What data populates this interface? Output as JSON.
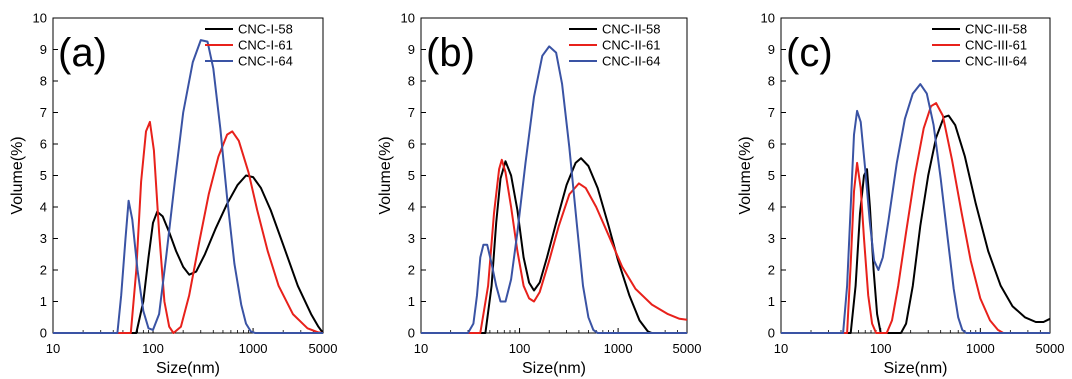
{
  "chart_data": [
    {
      "type": "line",
      "panel_label": "(a)",
      "xlabel": "Size(nm)",
      "ylabel": "Volume(%)",
      "xscale": "log",
      "xlim": [
        10,
        5000
      ],
      "ylim": [
        0,
        10
      ],
      "xticks": [
        10,
        100,
        1000,
        5000
      ],
      "xtick_labels": [
        "10",
        "100",
        "1000",
        "5000"
      ],
      "yticks": [
        0,
        1,
        2,
        3,
        4,
        5,
        6,
        7,
        8,
        9,
        10
      ],
      "ytick_labels": [
        "0",
        "1",
        "2",
        "3",
        "4",
        "5",
        "6",
        "7",
        "8",
        "9",
        "10"
      ],
      "grid": false,
      "legend": "top-right",
      "series": [
        {
          "name": "CNC-I-58",
          "color": "#000000",
          "points": [
            [
              10,
              0
            ],
            [
              68,
              0
            ],
            [
              80,
              1.0
            ],
            [
              90,
              2.4
            ],
            [
              100,
              3.5
            ],
            [
              110,
              3.85
            ],
            [
              125,
              3.7
            ],
            [
              145,
              3.2
            ],
            [
              170,
              2.6
            ],
            [
              200,
              2.1
            ],
            [
              230,
              1.85
            ],
            [
              270,
              1.95
            ],
            [
              330,
              2.5
            ],
            [
              420,
              3.3
            ],
            [
              550,
              4.1
            ],
            [
              700,
              4.7
            ],
            [
              850,
              5.0
            ],
            [
              1000,
              4.95
            ],
            [
              1200,
              4.6
            ],
            [
              1500,
              3.9
            ],
            [
              2000,
              2.8
            ],
            [
              2800,
              1.5
            ],
            [
              3800,
              0.6
            ],
            [
              4500,
              0.2
            ],
            [
              5000,
              0
            ]
          ]
        },
        {
          "name": "CNC-I-61",
          "color": "#e8211b",
          "points": [
            [
              10,
              0
            ],
            [
              60,
              0
            ],
            [
              68,
              2.0
            ],
            [
              76,
              4.8
            ],
            [
              85,
              6.4
            ],
            [
              93,
              6.7
            ],
            [
              102,
              5.8
            ],
            [
              115,
              3.2
            ],
            [
              130,
              1.0
            ],
            [
              145,
              0.2
            ],
            [
              160,
              0
            ],
            [
              190,
              0.2
            ],
            [
              230,
              1.2
            ],
            [
              290,
              2.9
            ],
            [
              360,
              4.4
            ],
            [
              450,
              5.6
            ],
            [
              550,
              6.3
            ],
            [
              620,
              6.4
            ],
            [
              720,
              6.1
            ],
            [
              900,
              5.1
            ],
            [
              1100,
              3.9
            ],
            [
              1400,
              2.6
            ],
            [
              1800,
              1.5
            ],
            [
              2500,
              0.6
            ],
            [
              3500,
              0.15
            ],
            [
              4500,
              0.02
            ],
            [
              5000,
              0
            ]
          ]
        },
        {
          "name": "CNC-I-64",
          "color": "#3a53a4",
          "points": [
            [
              10,
              0
            ],
            [
              44,
              0
            ],
            [
              48,
              1.2
            ],
            [
              53,
              3.0
            ],
            [
              57,
              4.2
            ],
            [
              62,
              3.6
            ],
            [
              70,
              2.0
            ],
            [
              80,
              0.7
            ],
            [
              90,
              0.15
            ],
            [
              100,
              0.1
            ],
            [
              115,
              0.6
            ],
            [
              135,
              2.4
            ],
            [
              165,
              4.8
            ],
            [
              200,
              7.0
            ],
            [
              250,
              8.6
            ],
            [
              300,
              9.3
            ],
            [
              350,
              9.25
            ],
            [
              400,
              8.4
            ],
            [
              470,
              6.5
            ],
            [
              550,
              4.3
            ],
            [
              650,
              2.2
            ],
            [
              760,
              0.9
            ],
            [
              850,
              0.3
            ],
            [
              950,
              0.05
            ],
            [
              1050,
              0
            ],
            [
              5000,
              0
            ]
          ]
        }
      ]
    },
    {
      "type": "line",
      "panel_label": "(b)",
      "xlabel": "Size(nm)",
      "ylabel": "Volume(%)",
      "xscale": "log",
      "xlim": [
        10,
        5000
      ],
      "ylim": [
        0,
        10
      ],
      "xticks": [
        10,
        100,
        1000,
        5000
      ],
      "xtick_labels": [
        "10",
        "100",
        "1000",
        "5000"
      ],
      "yticks": [
        0,
        1,
        2,
        3,
        4,
        5,
        6,
        7,
        8,
        9,
        10
      ],
      "ytick_labels": [
        "0",
        "1",
        "2",
        "3",
        "4",
        "5",
        "6",
        "7",
        "8",
        "9",
        "10"
      ],
      "grid": false,
      "legend": "top-right",
      "series": [
        {
          "name": "CNC-II-58",
          "color": "#000000",
          "points": [
            [
              10,
              0
            ],
            [
              45,
              0
            ],
            [
              52,
              1.5
            ],
            [
              58,
              3.5
            ],
            [
              64,
              4.9
            ],
            [
              72,
              5.45
            ],
            [
              82,
              5.0
            ],
            [
              95,
              3.9
            ],
            [
              110,
              2.4
            ],
            [
              125,
              1.6
            ],
            [
              140,
              1.35
            ],
            [
              160,
              1.6
            ],
            [
              190,
              2.4
            ],
            [
              240,
              3.6
            ],
            [
              300,
              4.7
            ],
            [
              370,
              5.4
            ],
            [
              420,
              5.55
            ],
            [
              500,
              5.3
            ],
            [
              620,
              4.6
            ],
            [
              800,
              3.4
            ],
            [
              1000,
              2.3
            ],
            [
              1300,
              1.2
            ],
            [
              1650,
              0.4
            ],
            [
              2000,
              0.05
            ],
            [
              2200,
              0
            ],
            [
              5000,
              0
            ]
          ]
        },
        {
          "name": "CNC-II-61",
          "color": "#e8211b",
          "points": [
            [
              10,
              0
            ],
            [
              40,
              0
            ],
            [
              48,
              1.5
            ],
            [
              55,
              3.8
            ],
            [
              62,
              5.2
            ],
            [
              66,
              5.5
            ],
            [
              72,
              5.1
            ],
            [
              82,
              4.0
            ],
            [
              95,
              2.6
            ],
            [
              110,
              1.5
            ],
            [
              125,
              1.1
            ],
            [
              140,
              1.0
            ],
            [
              160,
              1.3
            ],
            [
              200,
              2.3
            ],
            [
              250,
              3.4
            ],
            [
              320,
              4.4
            ],
            [
              400,
              4.75
            ],
            [
              470,
              4.6
            ],
            [
              600,
              4.0
            ],
            [
              800,
              3.1
            ],
            [
              1100,
              2.1
            ],
            [
              1500,
              1.4
            ],
            [
              2200,
              0.9
            ],
            [
              3200,
              0.6
            ],
            [
              4200,
              0.45
            ],
            [
              5000,
              0.42
            ]
          ]
        },
        {
          "name": "CNC-II-64",
          "color": "#3a53a4",
          "points": [
            [
              10,
              0
            ],
            [
              30,
              0
            ],
            [
              34,
              0.3
            ],
            [
              37,
              1.2
            ],
            [
              40,
              2.4
            ],
            [
              43,
              2.8
            ],
            [
              47,
              2.8
            ],
            [
              52,
              2.2
            ],
            [
              58,
              1.5
            ],
            [
              64,
              1.0
            ],
            [
              72,
              1.0
            ],
            [
              82,
              1.7
            ],
            [
              95,
              3.2
            ],
            [
              115,
              5.4
            ],
            [
              140,
              7.5
            ],
            [
              170,
              8.8
            ],
            [
              200,
              9.1
            ],
            [
              235,
              8.9
            ],
            [
              270,
              7.9
            ],
            [
              320,
              5.9
            ],
            [
              380,
              3.5
            ],
            [
              440,
              1.5
            ],
            [
              500,
              0.5
            ],
            [
              560,
              0.1
            ],
            [
              620,
              0
            ],
            [
              5000,
              0
            ]
          ]
        }
      ]
    },
    {
      "type": "line",
      "panel_label": "(c)",
      "xlabel": "Size(nm)",
      "ylabel": "Volume(%)",
      "xscale": "log",
      "xlim": [
        10,
        5000
      ],
      "ylim": [
        0,
        10
      ],
      "xticks": [
        10,
        100,
        1000,
        5000
      ],
      "xtick_labels": [
        "10",
        "100",
        "1000",
        "5000"
      ],
      "yticks": [
        0,
        1,
        2,
        3,
        4,
        5,
        6,
        7,
        8,
        9,
        10
      ],
      "ytick_labels": [
        "0",
        "1",
        "2",
        "3",
        "4",
        "5",
        "6",
        "7",
        "8",
        "9",
        "10"
      ],
      "grid": false,
      "legend": "top-right",
      "series": [
        {
          "name": "CNC-III-58",
          "color": "#000000",
          "points": [
            [
              10,
              0
            ],
            [
              50,
              0
            ],
            [
              56,
              1.5
            ],
            [
              62,
              3.8
            ],
            [
              68,
              5.0
            ],
            [
              73,
              5.2
            ],
            [
              78,
              4.0
            ],
            [
              85,
              2.0
            ],
            [
              92,
              0.6
            ],
            [
              100,
              0
            ],
            [
              160,
              0
            ],
            [
              180,
              0.3
            ],
            [
              210,
              1.5
            ],
            [
              250,
              3.4
            ],
            [
              300,
              5.0
            ],
            [
              360,
              6.2
            ],
            [
              430,
              6.85
            ],
            [
              480,
              6.9
            ],
            [
              560,
              6.6
            ],
            [
              700,
              5.6
            ],
            [
              900,
              4.1
            ],
            [
              1200,
              2.6
            ],
            [
              1600,
              1.5
            ],
            [
              2100,
              0.85
            ],
            [
              2800,
              0.5
            ],
            [
              3600,
              0.35
            ],
            [
              4300,
              0.35
            ],
            [
              5000,
              0.45
            ]
          ]
        },
        {
          "name": "CNC-III-61",
          "color": "#e8211b",
          "points": [
            [
              10,
              0
            ],
            [
              46,
              0
            ],
            [
              50,
              2.2
            ],
            [
              54,
              4.5
            ],
            [
              58,
              5.4
            ],
            [
              63,
              4.6
            ],
            [
              68,
              3.0
            ],
            [
              75,
              1.2
            ],
            [
              82,
              0.3
            ],
            [
              90,
              0
            ],
            [
              115,
              0
            ],
            [
              130,
              0.4
            ],
            [
              150,
              1.5
            ],
            [
              180,
              3.2
            ],
            [
              220,
              5.0
            ],
            [
              270,
              6.5
            ],
            [
              320,
              7.2
            ],
            [
              360,
              7.3
            ],
            [
              420,
              6.9
            ],
            [
              520,
              5.5
            ],
            [
              650,
              3.8
            ],
            [
              800,
              2.3
            ],
            [
              1000,
              1.1
            ],
            [
              1250,
              0.4
            ],
            [
              1500,
              0.1
            ],
            [
              1700,
              0
            ],
            [
              5000,
              0
            ]
          ]
        },
        {
          "name": "CNC-III-64",
          "color": "#3a53a4",
          "points": [
            [
              10,
              0
            ],
            [
              42,
              0
            ],
            [
              46,
              1.5
            ],
            [
              50,
              4.0
            ],
            [
              54,
              6.3
            ],
            [
              58,
              7.05
            ],
            [
              63,
              6.7
            ],
            [
              70,
              5.2
            ],
            [
              78,
              3.5
            ],
            [
              86,
              2.3
            ],
            [
              95,
              2.0
            ],
            [
              105,
              2.4
            ],
            [
              120,
              3.6
            ],
            [
              145,
              5.4
            ],
            [
              175,
              6.8
            ],
            [
              210,
              7.6
            ],
            [
              250,
              7.9
            ],
            [
              290,
              7.6
            ],
            [
              340,
              6.6
            ],
            [
              400,
              4.9
            ],
            [
              470,
              3.0
            ],
            [
              540,
              1.4
            ],
            [
              600,
              0.5
            ],
            [
              660,
              0.1
            ],
            [
              720,
              0
            ],
            [
              5000,
              0
            ]
          ]
        }
      ]
    }
  ]
}
